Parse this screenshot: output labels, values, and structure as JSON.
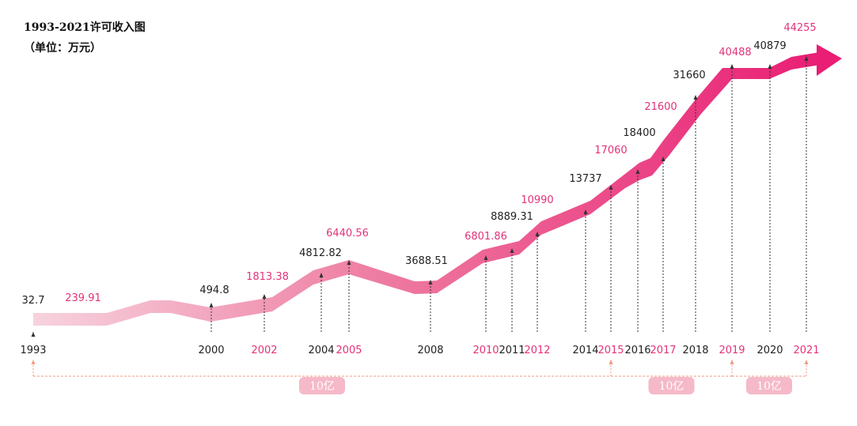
{
  "chart_data": {
    "type": "line",
    "title": "1993-2021许可收入图",
    "subtitle": "（单位：万元）",
    "xlabel": "",
    "ylabel": "",
    "colors": {
      "line_start": "#f7d3de",
      "line_mid": "#ee7aa0",
      "line_end": "#e91e74",
      "highlight_text": "#e2337a",
      "normal_text": "#222222",
      "bracket": "#f29b83",
      "badge_bg": "#f5b9c9",
      "badge_text": "#ffffff"
    },
    "x": [
      "1993",
      "2000",
      "2002",
      "2004",
      "2005",
      "2008",
      "2010",
      "2011",
      "2012",
      "2014",
      "2015",
      "2016",
      "2017",
      "2018",
      "2019",
      "2020",
      "2021"
    ],
    "value_labels": [
      "32.7",
      "494.8",
      "1813.38",
      "4812.82",
      "6440.56",
      "3688.51",
      "6801.86",
      "8889.31",
      "10990",
      "13737",
      "17060",
      "18400",
      "21600",
      "31660",
      "40488",
      "40879",
      "44255"
    ],
    "extra_value_labels": [
      {
        "text": "239.91",
        "highlight": true
      }
    ],
    "highlighted_years": [
      "2002",
      "2005",
      "2010",
      "2012",
      "2015",
      "2017",
      "2019",
      "2021"
    ],
    "milestones": [
      {
        "label": "10亿",
        "from": "1993",
        "to": "2015"
      },
      {
        "label": "10亿",
        "from": "2015",
        "to": "2019"
      },
      {
        "label": "10亿",
        "from": "2019",
        "to": "2021"
      }
    ]
  }
}
